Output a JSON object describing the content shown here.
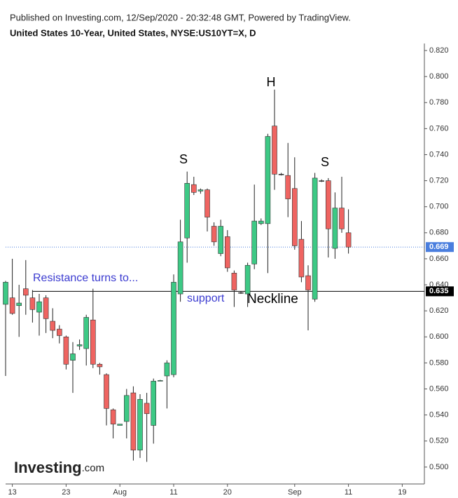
{
  "chart_data": {
    "type": "candlestick",
    "header": "Published on Investing.com, 12/Sep/2020 - 20:32:48 GMT, Powered by TradingView.",
    "title": "United States 10-Year, United States, NYSE:US10YT=X, D",
    "logo": {
      "name": "Investing",
      "suffix": ".com"
    },
    "categories": [
      null,
      "13",
      null,
      null,
      null,
      null,
      null,
      null,
      null,
      "23",
      null,
      null,
      null,
      null,
      null,
      null,
      null,
      "Aug",
      null,
      null,
      null,
      null,
      null,
      null,
      null,
      "11",
      null,
      null,
      null,
      null,
      null,
      null,
      null,
      "20",
      null,
      null,
      null,
      null,
      null,
      null,
      null,
      null,
      null,
      "Sep",
      null,
      null,
      null,
      null,
      null,
      null,
      null,
      "11",
      null,
      null,
      null,
      null,
      null,
      null,
      null,
      "19",
      null,
      null,
      null
    ],
    "open": [
      0.625,
      0.63,
      0.624,
      0.637,
      0.63,
      0.619,
      0.63,
      0.612,
      0.606,
      0.6,
      0.582,
      0.593,
      0.591,
      0.613,
      0.579,
      0.571,
      0.544,
      0.532,
      0.535,
      0.557,
      0.513,
      0.549,
      0.532,
      0.566,
      0.57,
      0.571,
      0.633,
      0.676,
      0.717,
      0.712,
      0.713,
      0.685,
      0.664,
      0.677,
      0.649,
      0.634,
      0.633,
      0.656,
      0.687,
      0.687,
      0.762,
      0.725,
      0.724,
      0.714,
      0.675,
      0.647,
      0.629,
      0.72,
      0.72,
      0.668,
      0.699,
      0.68,
      null,
      null,
      null,
      null,
      null,
      null,
      null,
      null,
      null,
      null,
      null
    ],
    "high": [
      0.643,
      0.66,
      0.64,
      0.659,
      0.636,
      0.633,
      0.632,
      0.622,
      0.609,
      0.601,
      0.596,
      0.598,
      0.617,
      0.637,
      0.58,
      0.572,
      0.545,
      0.533,
      0.56,
      0.562,
      0.556,
      0.557,
      0.568,
      0.567,
      0.582,
      0.648,
      0.69,
      0.727,
      0.723,
      0.714,
      0.714,
      0.688,
      0.69,
      0.682,
      0.651,
      0.635,
      0.657,
      0.717,
      0.691,
      0.756,
      0.79,
      0.726,
      0.749,
      0.738,
      0.689,
      0.655,
      0.726,
      0.721,
      0.722,
      0.711,
      0.723,
      0.698,
      null,
      null,
      null,
      null,
      null,
      null,
      null,
      null,
      null,
      null,
      null
    ],
    "low": [
      0.57,
      0.617,
      0.6,
      0.617,
      0.611,
      0.601,
      0.603,
      0.599,
      0.595,
      0.575,
      0.557,
      0.59,
      0.578,
      0.576,
      0.571,
      0.532,
      0.522,
      0.532,
      0.522,
      0.505,
      0.507,
      0.504,
      0.518,
      0.566,
      0.545,
      0.569,
      0.627,
      0.657,
      0.709,
      0.71,
      0.681,
      0.67,
      0.662,
      0.65,
      0.623,
      0.633,
      0.623,
      0.652,
      0.686,
      0.649,
      0.713,
      0.724,
      0.692,
      0.667,
      0.642,
      0.605,
      0.627,
      0.719,
      0.661,
      0.66,
      0.68,
      0.664,
      null,
      null,
      null,
      null,
      null,
      null,
      null,
      null,
      null,
      null,
      null
    ],
    "close": [
      0.642,
      0.618,
      0.626,
      0.632,
      0.621,
      0.627,
      0.614,
      0.605,
      0.601,
      0.579,
      0.587,
      0.594,
      0.615,
      0.579,
      0.577,
      0.545,
      0.533,
      0.533,
      0.555,
      0.513,
      0.552,
      0.541,
      0.566,
      0.5665,
      0.58,
      0.642,
      0.673,
      0.718,
      0.711,
      0.713,
      0.692,
      0.673,
      0.685,
      0.653,
      0.636,
      0.634,
      0.655,
      0.689,
      0.689,
      0.754,
      0.725,
      0.725,
      0.706,
      0.67,
      0.646,
      0.636,
      0.722,
      0.72,
      0.683,
      0.699,
      0.683,
      0.669,
      null,
      null,
      null,
      null,
      null,
      null,
      null,
      null,
      null,
      null,
      null
    ],
    "up_color": "#3dc985",
    "down_color": "#ef6461",
    "flat_color": "#333333",
    "ylim": [
      0.487,
      0.8254
    ],
    "yticks": [
      {
        "value": 0.5,
        "label": "0.500"
      },
      {
        "value": 0.52,
        "label": "0.520"
      },
      {
        "value": 0.54,
        "label": "0.540"
      },
      {
        "value": 0.56,
        "label": "0.560"
      },
      {
        "value": 0.58,
        "label": "0.580"
      },
      {
        "value": 0.6,
        "label": "0.600"
      },
      {
        "value": 0.62,
        "label": "0.620"
      },
      {
        "value": 0.64,
        "label": "0.640"
      },
      {
        "value": 0.66,
        "label": "0.660"
      },
      {
        "value": 0.68,
        "label": "0.680"
      },
      {
        "value": 0.7,
        "label": "0.700"
      },
      {
        "value": 0.72,
        "label": "0.720"
      },
      {
        "value": 0.74,
        "label": "0.740"
      },
      {
        "value": 0.76,
        "label": "0.760"
      },
      {
        "value": 0.78,
        "label": "0.780"
      },
      {
        "value": 0.8,
        "label": "0.800"
      },
      {
        "value": 0.82,
        "label": "0.820"
      }
    ],
    "reference_lines": [
      {
        "value": 0.669,
        "style": "dotted",
        "color": "#4a7ede"
      },
      {
        "value": 0.635,
        "style": "solid",
        "color": "#000000"
      }
    ],
    "annotations": [
      {
        "text": "S",
        "color": "#000000"
      },
      {
        "text": "H",
        "color": "#000000"
      },
      {
        "text": "S",
        "color": "#000000"
      },
      {
        "text": "Resistance turns to...",
        "color": "#3b3bd0"
      },
      {
        "text": "support",
        "color": "#3b3bd0"
      },
      {
        "text": "Neckline",
        "color": "#000000"
      }
    ]
  }
}
